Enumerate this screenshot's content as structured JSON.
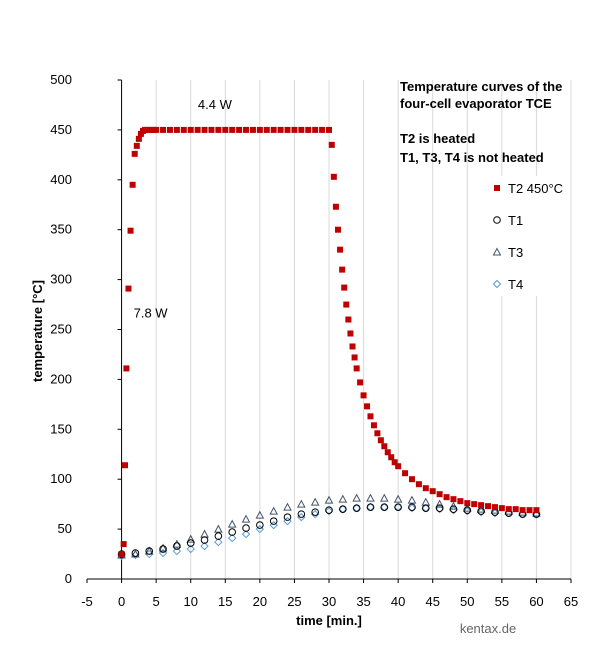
{
  "chart_data": {
    "type": "scatter",
    "title_lines": [
      "Temperature curves of the",
      "four-cell evaporator TCE"
    ],
    "subtitle_lines": [
      "T2 is heated",
      "T1, T3, T4 is not heated"
    ],
    "xlabel": "time [min.]",
    "ylabel": "temperature [°C]",
    "xlim": [
      -5,
      65
    ],
    "ylim": [
      0,
      500
    ],
    "x_ticks": [
      -5,
      0,
      5,
      10,
      15,
      20,
      25,
      30,
      35,
      40,
      45,
      50,
      55,
      60,
      65
    ],
    "y_ticks": [
      0,
      50,
      100,
      150,
      200,
      250,
      300,
      350,
      400,
      450,
      500
    ],
    "grid": "vertical",
    "legend_position": "right",
    "annotations": [
      {
        "text": "4.4 W",
        "x": 13.5,
        "y": 475
      },
      {
        "text": "7.8 W",
        "x": 4.2,
        "y": 266
      }
    ],
    "credit": "kentax.de",
    "series": [
      {
        "name": "T2 450°C",
        "marker": "square",
        "color": "#c00000",
        "x": [
          0,
          0.3,
          0.5,
          0.7,
          1.0,
          1.3,
          1.6,
          1.9,
          2.2,
          2.5,
          2.8,
          3.1,
          3.4,
          3.8,
          4.2,
          4.6,
          5,
          6,
          7,
          8,
          9,
          10,
          11,
          12,
          13,
          14,
          15,
          16,
          17,
          18,
          19,
          20,
          21,
          22,
          23,
          24,
          25,
          26,
          27,
          28,
          29,
          30,
          30.4,
          30.7,
          31,
          31.3,
          31.6,
          31.9,
          32.2,
          32.5,
          32.8,
          33.1,
          33.4,
          33.7,
          34,
          34.5,
          35,
          35.5,
          36,
          36.5,
          37,
          37.5,
          38,
          38.5,
          39,
          39.5,
          40,
          41,
          42,
          43,
          44,
          45,
          46,
          47,
          48,
          49,
          50,
          51,
          52,
          53,
          54,
          55,
          56,
          57,
          58,
          59,
          60
        ],
        "y": [
          25,
          35,
          114,
          211,
          291,
          349,
          395,
          426,
          434,
          441,
          446,
          449,
          450,
          450,
          450,
          450,
          450,
          450,
          450,
          450,
          450,
          450,
          450,
          450,
          450,
          450,
          450,
          450,
          450,
          450,
          450,
          450,
          450,
          450,
          450,
          450,
          450,
          450,
          450,
          450,
          450,
          450,
          435,
          403,
          373,
          350,
          330,
          310,
          292,
          275,
          260,
          246,
          233,
          222,
          211,
          197,
          184,
          173,
          163,
          154,
          146,
          139,
          133,
          127,
          122,
          117,
          113,
          106,
          100,
          95,
          91,
          88,
          85,
          82,
          80,
          78,
          76,
          75,
          74,
          73,
          72,
          71,
          70,
          70,
          69,
          69,
          69
        ]
      },
      {
        "name": "T1",
        "marker": "circle",
        "color": "#000000",
        "x": [
          0,
          2,
          4,
          6,
          8,
          10,
          12,
          14,
          16,
          18,
          20,
          22,
          24,
          26,
          28,
          30,
          32,
          34,
          36,
          38,
          40,
          42,
          44,
          46,
          48,
          50,
          52,
          54,
          56,
          58,
          60
        ],
        "y": [
          25,
          26,
          28,
          30,
          33,
          36,
          39,
          43,
          47,
          51,
          54,
          58,
          62,
          65,
          67,
          69,
          70,
          71,
          72,
          72,
          72,
          72,
          71,
          71,
          70,
          69,
          68,
          67,
          66,
          65,
          65
        ]
      },
      {
        "name": "T3",
        "marker": "triangle",
        "color": "#44546a",
        "x": [
          0,
          2,
          4,
          6,
          8,
          10,
          12,
          14,
          16,
          18,
          20,
          22,
          24,
          26,
          28,
          30,
          32,
          34,
          36,
          38,
          40,
          42,
          44,
          46,
          48,
          50,
          52,
          54,
          56,
          58,
          60
        ],
        "y": [
          24,
          25,
          28,
          31,
          35,
          40,
          45,
          50,
          55,
          60,
          64,
          68,
          72,
          75,
          77,
          79,
          80,
          81,
          81,
          81,
          80,
          79,
          77,
          75,
          73,
          71,
          70,
          69,
          68,
          67,
          66
        ]
      },
      {
        "name": "T4",
        "marker": "diamond",
        "color": "#5b9bd5",
        "x": [
          0,
          2,
          4,
          6,
          8,
          10,
          12,
          14,
          16,
          18,
          20,
          22,
          24,
          26,
          28,
          30,
          32,
          34,
          36,
          38,
          40,
          42,
          44,
          46,
          48,
          50,
          52,
          54,
          56,
          58,
          60
        ],
        "y": [
          23,
          24,
          25,
          26,
          28,
          30,
          33,
          37,
          41,
          45,
          50,
          54,
          58,
          62,
          65,
          68,
          70,
          71,
          72,
          72,
          72,
          71,
          71,
          70,
          69,
          68,
          67,
          66,
          66,
          65,
          65
        ]
      }
    ]
  }
}
